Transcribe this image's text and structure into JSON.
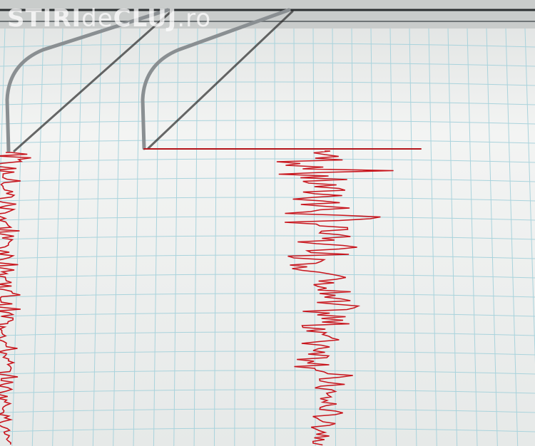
{
  "watermark": {
    "part1": "STIRI",
    "part2": "de",
    "part3": "CLUJ",
    "part4": ".ro"
  },
  "colors": {
    "paper": "#eef0ef",
    "grid": "#a9d3dc",
    "trace": "#c8141c",
    "stylus": "#8a8f92"
  },
  "icons": [
    "seismograph-stylus",
    "seismogram-trace"
  ]
}
